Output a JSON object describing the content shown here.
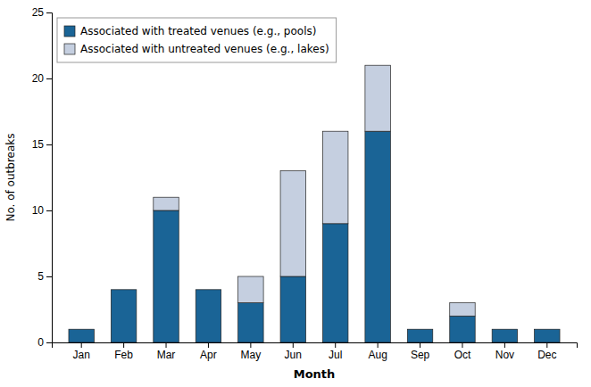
{
  "chart_data": {
    "type": "bar",
    "stacked": true,
    "categories": [
      "Jan",
      "Feb",
      "Mar",
      "Apr",
      "May",
      "Jun",
      "Jul",
      "Aug",
      "Sep",
      "Oct",
      "Nov",
      "Dec"
    ],
    "series": [
      {
        "name": "Associated with treated venues (e.g., pools)",
        "color": "#1a6496",
        "values": [
          1,
          4,
          10,
          4,
          3,
          5,
          9,
          16,
          1,
          2,
          1,
          1
        ]
      },
      {
        "name": "Associated with untreated venues (e.g., lakes)",
        "color": "#c5cfe0",
        "values": [
          0,
          0,
          1,
          0,
          2,
          8,
          7,
          5,
          0,
          1,
          0,
          0
        ]
      }
    ],
    "xlabel": "Month",
    "ylabel": "No. of outbreaks",
    "ylim": [
      0,
      25
    ],
    "yticks": [
      0,
      5,
      10,
      15,
      20,
      25
    ],
    "grid": false,
    "legend": "upper left"
  }
}
